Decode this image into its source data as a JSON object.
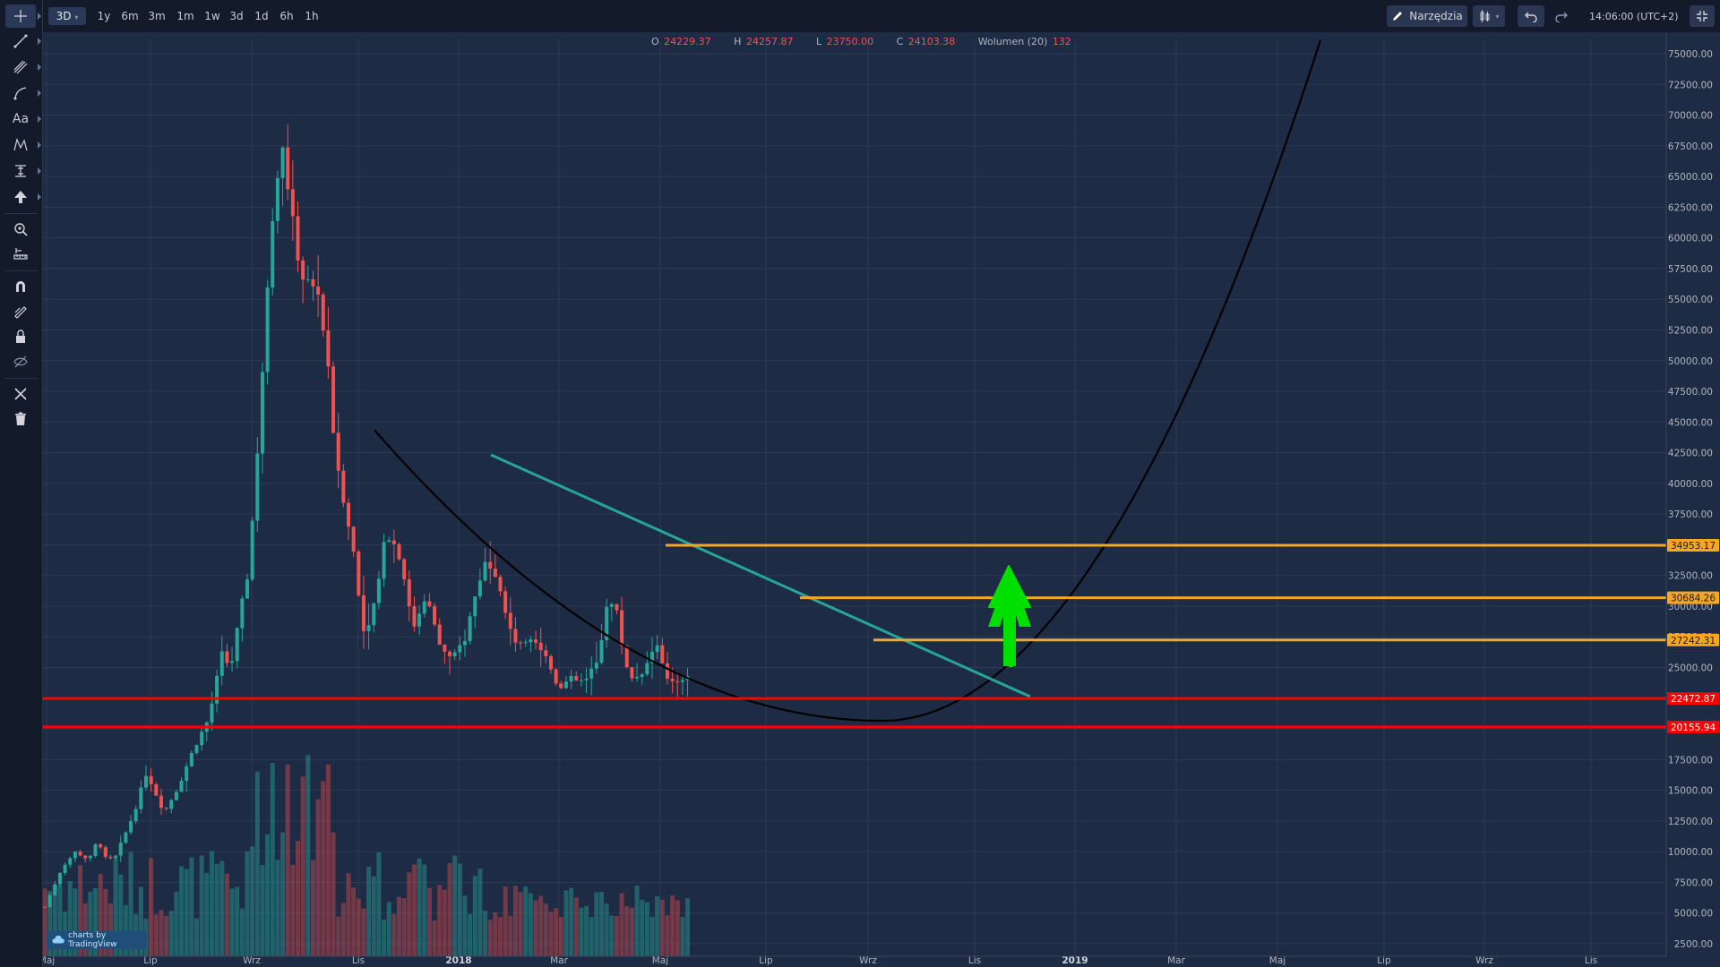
{
  "toolbar_left": {
    "icons": [
      "crosshair-icon",
      "trend-line-icon",
      "pitchfork-icon",
      "brush-icon",
      "text-icon",
      "pattern-icon",
      "measure-icon",
      "arrow-icon",
      "zoom-icon",
      "ruler-icon",
      "magnet-icon",
      "drawing-mode-icon",
      "lock-icon",
      "hide-icon",
      "tools-remove-icon",
      "trash-icon"
    ],
    "text_tool_label": "Aa"
  },
  "toolbar_top": {
    "selected_range": "3D",
    "ranges": [
      "1y",
      "6m",
      "3m",
      "1m",
      "1w",
      "3d",
      "1d",
      "6h",
      "1h"
    ],
    "tools_label": "Narzędzia",
    "clock": "14:06:00 (UTC+2)"
  },
  "ohlc": {
    "o_label": "O",
    "o_value": "24229.37",
    "h_label": "H",
    "h_value": "24257.87",
    "l_label": "L",
    "l_value": "23750.00",
    "c_label": "C",
    "c_value": "24103.38",
    "volume_label": "Wolumen (20)",
    "volume_value": "132"
  },
  "watermark": "charts by TradingView",
  "colors": {
    "background": "#1e2b44",
    "up": "#26a69a",
    "down": "#ef5350",
    "support": "#ff0000",
    "resistance": "#f5a623",
    "trendline": "#26a69a",
    "arrow": "#00e000",
    "curve": "#000000"
  },
  "chart_data": {
    "type": "candlestick",
    "y_axis": {
      "min": 2500,
      "max": 75000,
      "step": 2500,
      "ticks": [
        "2500.00",
        "5000.00",
        "7500.00",
        "10000.00",
        "12500.00",
        "15000.00",
        "17500.00",
        "20000.00",
        "22500.00",
        "25000.00",
        "27500.00",
        "30000.00",
        "32500.00",
        "35000.00",
        "37500.00",
        "40000.00",
        "42500.00",
        "45000.00",
        "47500.00",
        "50000.00",
        "52500.00",
        "55000.00",
        "57500.00",
        "60000.00",
        "62500.00",
        "65000.00",
        "67500.00",
        "70000.00",
        "72500.00",
        "75000.00"
      ]
    },
    "x_axis": {
      "ticks": [
        "Maj",
        "Lip",
        "Wrz",
        "Lis",
        "2018",
        "Mar",
        "Maj",
        "Lip",
        "Wrz",
        "Lis",
        "2019",
        "Mar",
        "Maj",
        "Lip",
        "Wrz",
        "Lis"
      ]
    },
    "horizontal_levels": [
      {
        "value": 34953.17,
        "label": "34953.17",
        "kind": "resistance"
      },
      {
        "value": 30684.26,
        "label": "30684.26",
        "kind": "resistance"
      },
      {
        "value": 27242.31,
        "label": "27242.31",
        "kind": "resistance"
      },
      {
        "value": 22472.87,
        "label": "22472.87",
        "kind": "support"
      },
      {
        "value": 20155.94,
        "label": "20155.94",
        "kind": "support"
      }
    ],
    "price_path": [
      [
        0,
        5500
      ],
      [
        20,
        8800
      ],
      [
        35,
        10000
      ],
      [
        50,
        9300
      ],
      [
        60,
        11000
      ],
      [
        70,
        9200
      ],
      [
        80,
        9600
      ],
      [
        100,
        13000
      ],
      [
        115,
        16500
      ],
      [
        125,
        14800
      ],
      [
        135,
        13200
      ],
      [
        150,
        15200
      ],
      [
        170,
        18700
      ],
      [
        185,
        20800
      ],
      [
        200,
        26000
      ],
      [
        210,
        25000
      ],
      [
        220,
        29000
      ],
      [
        230,
        33000
      ],
      [
        240,
        42000
      ],
      [
        250,
        55000
      ],
      [
        260,
        65000
      ],
      [
        270,
        67200
      ],
      [
        280,
        61000
      ],
      [
        290,
        57000
      ],
      [
        300,
        56000
      ],
      [
        310,
        55500
      ],
      [
        320,
        49000
      ],
      [
        330,
        41000
      ],
      [
        340,
        37500
      ],
      [
        350,
        34000
      ],
      [
        360,
        28000
      ],
      [
        370,
        29500
      ],
      [
        385,
        36000
      ],
      [
        395,
        35000
      ],
      [
        405,
        33000
      ],
      [
        415,
        28000
      ],
      [
        430,
        31000
      ],
      [
        445,
        27000
      ],
      [
        460,
        25500
      ],
      [
        475,
        27500
      ],
      [
        490,
        32000
      ],
      [
        500,
        34000
      ],
      [
        510,
        32500
      ],
      [
        520,
        29500
      ],
      [
        535,
        26500
      ],
      [
        550,
        27800
      ],
      [
        565,
        26000
      ],
      [
        580,
        23500
      ],
      [
        595,
        24000
      ],
      [
        610,
        23800
      ],
      [
        625,
        25500
      ],
      [
        635,
        30500
      ],
      [
        645,
        29800
      ],
      [
        655,
        25500
      ],
      [
        665,
        24000
      ],
      [
        680,
        25200
      ],
      [
        690,
        27100
      ],
      [
        700,
        24300
      ],
      [
        710,
        24000
      ],
      [
        720,
        24200
      ],
      [
        726,
        24100
      ]
    ],
    "volume": {
      "min": 0,
      "max": 18000
    }
  }
}
